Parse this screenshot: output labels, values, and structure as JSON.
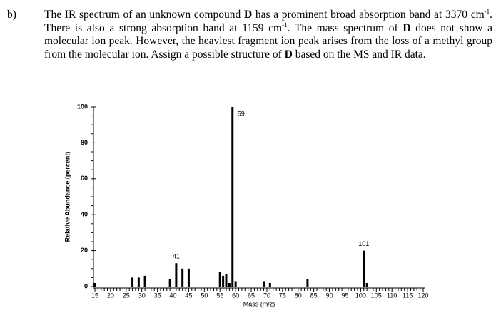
{
  "question": {
    "label": "b)",
    "runs": [
      "The IR spectrum of an unknown compound ",
      "D",
      " has a prominent broad absorption band at 3370 cm",
      "-1",
      ". There is also a strong absorption band at 1159 cm",
      "-1",
      ". The mass spectrum of ",
      "D",
      " does not show a molecular ion peak. However, the heaviest fragment ion peak arises from the loss of a methyl group from the molecular ion. Assign a possible structure of ",
      "D",
      " based on the MS and IR data."
    ]
  },
  "chart_data": {
    "type": "bar",
    "x_label": "Mass (m/z)",
    "y_label": "Relative Abundance (percent)",
    "color": "#000000",
    "x": [
      15,
      27,
      29,
      31,
      39,
      41,
      43,
      45,
      55,
      56,
      57,
      58,
      59,
      60,
      69,
      71,
      83,
      101,
      102
    ],
    "values": [
      2,
      5,
      5,
      6,
      4,
      13,
      10,
      10,
      8,
      6,
      7,
      2,
      100,
      3,
      3,
      2,
      4,
      20,
      2
    ],
    "annotations": [
      59,
      41,
      101
    ],
    "xlim": [
      15,
      120
    ],
    "xticks": [
      15,
      20,
      25,
      30,
      35,
      40,
      45,
      50,
      55,
      60,
      65,
      70,
      75,
      80,
      85,
      90,
      95,
      100,
      105,
      110,
      115,
      120
    ],
    "ylim": [
      0,
      100
    ],
    "yticks": [
      0,
      20,
      40,
      60,
      80,
      100
    ]
  }
}
